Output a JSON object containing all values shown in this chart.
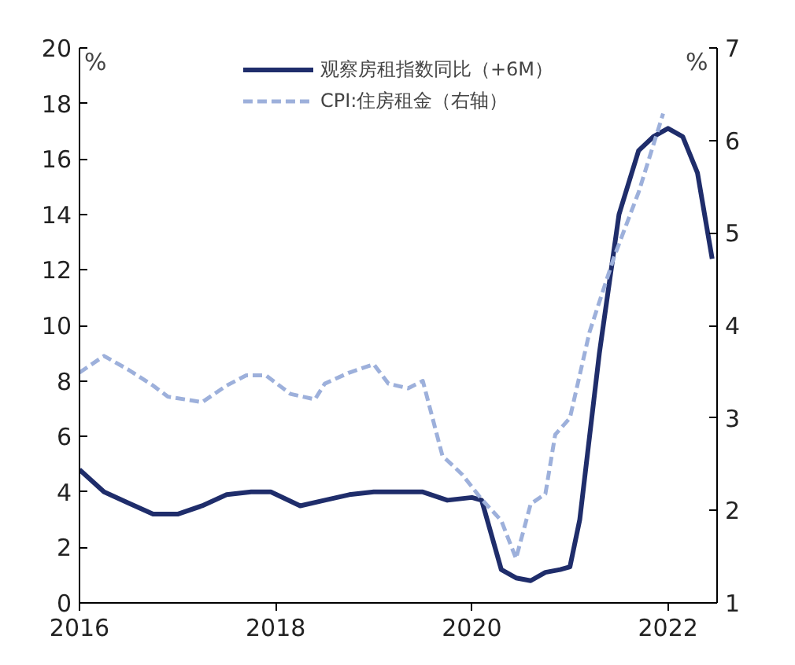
{
  "chart_data": {
    "type": "line",
    "ylabel": "%",
    "y2label": "%",
    "xlim": [
      2016,
      2022.5
    ],
    "xticks": [
      {
        "value": 2016,
        "label": "2016"
      },
      {
        "value": 2018,
        "label": "2018"
      },
      {
        "value": 2020,
        "label": "2020"
      },
      {
        "value": 2022,
        "label": "2022"
      }
    ],
    "ylim": [
      0,
      20
    ],
    "yticks": [
      0,
      2,
      4,
      6,
      8,
      10,
      12,
      14,
      16,
      18,
      20
    ],
    "y2lim": [
      1,
      7
    ],
    "y2ticks": [
      1,
      2,
      3,
      4,
      5,
      6,
      7
    ],
    "grid": false,
    "legend": "top",
    "marker": "none",
    "series": [
      {
        "name": "观察房租指数同比（+6M）",
        "color": "#1f2d6b",
        "line_style": "solid",
        "x": [
          2016.0,
          2016.25,
          2016.5,
          2016.75,
          2017.0,
          2017.25,
          2017.5,
          2017.75,
          2017.95,
          2018.25,
          2018.5,
          2018.75,
          2019.0,
          2019.25,
          2019.5,
          2019.75,
          2020.0,
          2020.1,
          2020.3,
          2020.45,
          2020.6,
          2020.75,
          2020.9,
          2021.0,
          2021.1,
          2021.3,
          2021.5,
          2021.7,
          2021.85,
          2022.0,
          2022.15,
          2022.3,
          2022.45
        ],
        "values": [
          4.8,
          4.0,
          3.6,
          3.2,
          3.2,
          3.5,
          3.9,
          4.0,
          4.0,
          3.5,
          3.7,
          3.9,
          4.0,
          4.0,
          4.0,
          3.7,
          3.8,
          3.7,
          1.2,
          0.9,
          0.8,
          1.1,
          1.2,
          1.3,
          3.0,
          9.0,
          14.0,
          16.3,
          16.8,
          17.1,
          16.8,
          15.5,
          12.4
        ]
      },
      {
        "name": "CPI:住房租金（右轴）",
        "color": "#9db0db",
        "line_style": "dashed",
        "axis": "y2",
        "x": [
          2016.0,
          2016.25,
          2016.5,
          2016.75,
          2016.9,
          2017.25,
          2017.5,
          2017.7,
          2017.9,
          2018.15,
          2018.4,
          2018.5,
          2018.75,
          2019.0,
          2019.15,
          2019.35,
          2019.5,
          2019.7,
          2019.9,
          2020.1,
          2020.3,
          2020.45,
          2020.6,
          2020.75,
          2020.85,
          2021.0,
          2021.2,
          2021.45,
          2021.7,
          2021.95
        ],
        "values": [
          3.49,
          3.67,
          3.52,
          3.35,
          3.23,
          3.17,
          3.35,
          3.46,
          3.46,
          3.26,
          3.2,
          3.37,
          3.49,
          3.58,
          3.37,
          3.32,
          3.4,
          2.59,
          2.39,
          2.12,
          1.89,
          1.48,
          2.07,
          2.18,
          2.82,
          3.0,
          3.93,
          4.74,
          5.44,
          6.29
        ]
      }
    ]
  }
}
